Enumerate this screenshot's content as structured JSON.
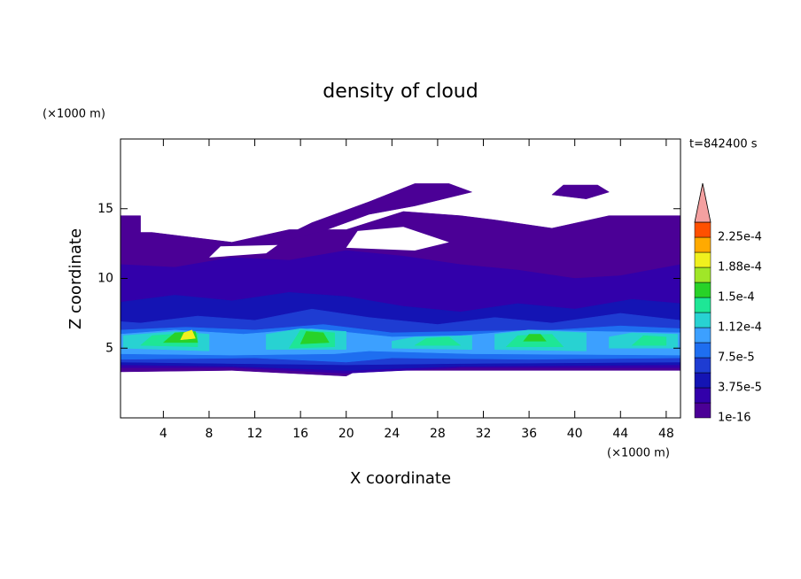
{
  "chart_data": {
    "type": "contour",
    "title": "density of cloud",
    "x_label": "X coordinate",
    "y_label": "Z coordinate",
    "x_unit": "(×1000 m)",
    "y_unit": "(×1000 m)",
    "annotation": "t=842400 s",
    "xlim": [
      0.25,
      49.25
    ],
    "ylim": [
      0,
      20
    ],
    "xticks": [
      4,
      8,
      12,
      16,
      20,
      24,
      28,
      32,
      36,
      40,
      44,
      48
    ],
    "yticks": [
      5,
      10,
      15
    ],
    "colorbar": {
      "levels": [
        1e-16,
        1.875e-05,
        {
          "value": 3.75e-05,
          "label": "3.75e-5"
        },
        5.625e-05,
        {
          "value": 7.5e-05,
          "label": "7.5e-5"
        },
        9.375e-05,
        {
          "value": 0.0001125,
          "label": "1.12e-4"
        },
        0.00013125,
        {
          "value": 0.00015,
          "label": "1.5e-4"
        },
        0.00016875,
        {
          "value": 0.0001875,
          "label": "1.88e-4"
        },
        0.00020625,
        {
          "value": 0.000225,
          "label": "2.25e-4"
        },
        0.00024375
      ],
      "colors": [
        "#4b0096",
        "#3200aa",
        "#1414b4",
        "#1e3cd2",
        "#1e6ef0",
        "#3ca0ff",
        "#28d2d2",
        "#1ee696",
        "#28d228",
        "#a0e628",
        "#f0f01e",
        "#ffaa00",
        "#ff5000"
      ],
      "extend_color": "#f4a0a0"
    },
    "regions": [
      {
        "level": 0,
        "points": [
          [
            0.25,
            3.3
          ],
          [
            10,
            3.4
          ],
          [
            20,
            3.0
          ],
          [
            21,
            3.4
          ],
          [
            49.25,
            3.4
          ],
          [
            49.25,
            14.5
          ],
          [
            43,
            14.5
          ],
          [
            38,
            13.6
          ],
          [
            33,
            14.2
          ],
          [
            30,
            14.5
          ],
          [
            25,
            14.8
          ],
          [
            20,
            13.5
          ],
          [
            15,
            13.5
          ],
          [
            10,
            12.6
          ],
          [
            6,
            13.0
          ],
          [
            3,
            13.3
          ],
          [
            2,
            13.3
          ],
          [
            2,
            14.5
          ],
          [
            0.25,
            14.5
          ]
        ]
      },
      {
        "level": 0,
        "points": [
          [
            13,
            12.4
          ],
          [
            17,
            14.0
          ],
          [
            22,
            15.5
          ],
          [
            26,
            16.8
          ],
          [
            29,
            16.8
          ],
          [
            31,
            16.2
          ],
          [
            26,
            15.2
          ],
          [
            22,
            14.6
          ],
          [
            18,
            13.4
          ]
        ]
      },
      {
        "level": 0,
        "points": [
          [
            38,
            16.0
          ],
          [
            39,
            16.7
          ],
          [
            42,
            16.7
          ],
          [
            43,
            16.2
          ],
          [
            41,
            15.7
          ]
        ]
      },
      {
        "level": 1,
        "points": [
          [
            0.25,
            3.6
          ],
          [
            10,
            3.6
          ],
          [
            20,
            3.2
          ],
          [
            30,
            3.6
          ],
          [
            49.25,
            3.6
          ],
          [
            49.25,
            11
          ],
          [
            44,
            10.2
          ],
          [
            40,
            10.0
          ],
          [
            35,
            10.6
          ],
          [
            30,
            11
          ],
          [
            25,
            11.6
          ],
          [
            20,
            12
          ],
          [
            15,
            11.3
          ],
          [
            10,
            11.5
          ],
          [
            5,
            10.8
          ],
          [
            0.25,
            11
          ]
        ]
      },
      {
        "level": 2,
        "points": [
          [
            0.25,
            3.8
          ],
          [
            10,
            3.7
          ],
          [
            20,
            3.4
          ],
          [
            30,
            3.7
          ],
          [
            49.25,
            3.8
          ],
          [
            49.25,
            8.2
          ],
          [
            45,
            8.5
          ],
          [
            40,
            7.8
          ],
          [
            35,
            8.2
          ],
          [
            30,
            7.6
          ],
          [
            25,
            8.0
          ],
          [
            20,
            8.7
          ],
          [
            15,
            9.0
          ],
          [
            10,
            8.4
          ],
          [
            5,
            8.8
          ],
          [
            0.25,
            8.3
          ]
        ]
      },
      {
        "level": 3,
        "points": [
          [
            0.25,
            4.0
          ],
          [
            10,
            3.9
          ],
          [
            20,
            3.8
          ],
          [
            30,
            3.9
          ],
          [
            49.25,
            4.0
          ],
          [
            49.25,
            7.0
          ],
          [
            44,
            7.5
          ],
          [
            38,
            6.8
          ],
          [
            33,
            7.2
          ],
          [
            28,
            6.7
          ],
          [
            22,
            7.2
          ],
          [
            17,
            7.8
          ],
          [
            12,
            7.0
          ],
          [
            7,
            7.3
          ],
          [
            2,
            6.8
          ],
          [
            0.25,
            6.9
          ]
        ]
      },
      {
        "level": 4,
        "points": [
          [
            0.25,
            4.2
          ],
          [
            12,
            4.3
          ],
          [
            20,
            4.0
          ],
          [
            24,
            4.3
          ],
          [
            36,
            4.2
          ],
          [
            49.25,
            4.3
          ],
          [
            49.25,
            6.4
          ],
          [
            44,
            6.6
          ],
          [
            38,
            6.3
          ],
          [
            30,
            6.2
          ],
          [
            24,
            6.1
          ],
          [
            18,
            6.7
          ],
          [
            12,
            6.3
          ],
          [
            6,
            6.5
          ],
          [
            0.25,
            6.3
          ]
        ]
      },
      {
        "level": 5,
        "points": [
          [
            0.25,
            4.6
          ],
          [
            10,
            4.5
          ],
          [
            19,
            4.6
          ],
          [
            22,
            4.8
          ],
          [
            31,
            4.6
          ],
          [
            49.25,
            4.5
          ],
          [
            49.25,
            6.1
          ],
          [
            42,
            6.2
          ],
          [
            36,
            6.3
          ],
          [
            30,
            5.9
          ],
          [
            24,
            5.8
          ],
          [
            17,
            6.4
          ],
          [
            11,
            6.0
          ],
          [
            5,
            6.3
          ],
          [
            0.25,
            6.0
          ]
        ]
      },
      {
        "level": 6,
        "points": [
          [
            0.5,
            5.0
          ],
          [
            8,
            4.8
          ],
          [
            8,
            6.0
          ],
          [
            5,
            6.2
          ],
          [
            0.5,
            5.9
          ]
        ]
      },
      {
        "level": 6,
        "points": [
          [
            13,
            4.9
          ],
          [
            20,
            4.9
          ],
          [
            20,
            6.2
          ],
          [
            16,
            6.4
          ],
          [
            13,
            6.0
          ]
        ]
      },
      {
        "level": 6,
        "points": [
          [
            24,
            5.0
          ],
          [
            31,
            4.9
          ],
          [
            31,
            5.9
          ],
          [
            26,
            5.8
          ],
          [
            24,
            5.5
          ]
        ]
      },
      {
        "level": 6,
        "points": [
          [
            33,
            4.9
          ],
          [
            41,
            4.8
          ],
          [
            41,
            6.1
          ],
          [
            36,
            6.3
          ],
          [
            33,
            6.0
          ]
        ]
      },
      {
        "level": 6,
        "points": [
          [
            43,
            5.0
          ],
          [
            49,
            5.0
          ],
          [
            49,
            6.0
          ],
          [
            45,
            6.1
          ],
          [
            43,
            5.8
          ]
        ]
      },
      {
        "level": 7,
        "points": [
          [
            2,
            5.2
          ],
          [
            7,
            5.1
          ],
          [
            7,
            6.1
          ],
          [
            3,
            5.9
          ]
        ]
      },
      {
        "level": 7,
        "points": [
          [
            15,
            5.0
          ],
          [
            19,
            5.1
          ],
          [
            19,
            6.1
          ],
          [
            16,
            6.3
          ]
        ]
      },
      {
        "level": 7,
        "points": [
          [
            26,
            5.2
          ],
          [
            30,
            5.2
          ],
          [
            29,
            5.8
          ],
          [
            27,
            5.7
          ]
        ]
      },
      {
        "level": 7,
        "points": [
          [
            34,
            5.1
          ],
          [
            39,
            5.1
          ],
          [
            38,
            6.0
          ],
          [
            35,
            5.9
          ]
        ]
      },
      {
        "level": 7,
        "points": [
          [
            45,
            5.2
          ],
          [
            48,
            5.2
          ],
          [
            48,
            5.8
          ],
          [
            46,
            5.9
          ]
        ]
      },
      {
        "level": 8,
        "points": [
          [
            4,
            5.4
          ],
          [
            7,
            5.4
          ],
          [
            6.8,
            6.2
          ],
          [
            5,
            6.1
          ]
        ]
      },
      {
        "level": 8,
        "points": [
          [
            16,
            5.3
          ],
          [
            18.5,
            5.4
          ],
          [
            18,
            6.1
          ],
          [
            16.5,
            6.2
          ]
        ]
      },
      {
        "level": 8,
        "points": [
          [
            35.5,
            5.5
          ],
          [
            37.5,
            5.5
          ],
          [
            37,
            6.0
          ],
          [
            36,
            6.0
          ]
        ]
      },
      {
        "level": 10,
        "points": [
          [
            5.5,
            5.6
          ],
          [
            6.8,
            5.7
          ],
          [
            6.5,
            6.3
          ],
          [
            5.8,
            6.1
          ]
        ]
      }
    ],
    "holes": [
      [
        [
          20,
          12.2
        ],
        [
          26,
          12.0
        ],
        [
          29,
          12.6
        ],
        [
          25,
          13.7
        ],
        [
          21,
          13.4
        ]
      ],
      [
        [
          8,
          11.5
        ],
        [
          13,
          11.8
        ],
        [
          14,
          12.4
        ],
        [
          9,
          12.3
        ]
      ]
    ]
  }
}
